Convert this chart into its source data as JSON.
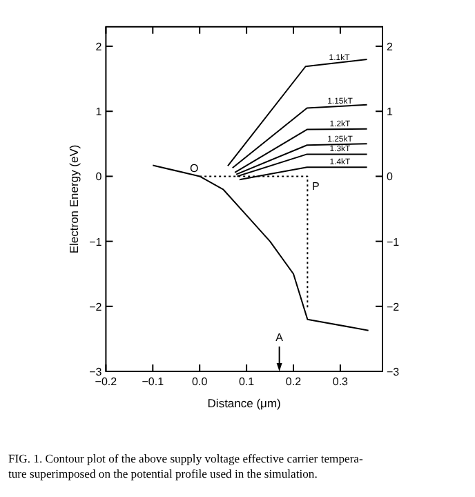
{
  "chart_data": {
    "type": "line",
    "xlabel": "Distance (μm)",
    "ylabel": "Electron Energy (eV)",
    "xlim": [
      -0.2,
      0.39
    ],
    "xticks": [
      {
        "value": -0.2,
        "label": "−0.2"
      },
      {
        "value": -0.1,
        "label": "−0.1"
      },
      {
        "value": 0,
        "label": "0.0"
      },
      {
        "value": 0.1,
        "label": "0.1"
      },
      {
        "value": 0.2,
        "label": "0.2"
      },
      {
        "value": 0.3,
        "label": "0.3"
      }
    ],
    "ylim": [
      -3,
      2.3
    ],
    "yticks": [
      {
        "value": -3,
        "label": "−3"
      },
      {
        "value": -2,
        "label": "−2"
      },
      {
        "value": -1,
        "label": "−1"
      },
      0,
      1,
      2
    ],
    "y2lim": [
      -3,
      2.3
    ],
    "y2ticks": [
      {
        "value": -3,
        "label": "−3"
      },
      {
        "value": -2,
        "label": "−2"
      },
      {
        "value": -1,
        "label": "−1"
      },
      0,
      1,
      2
    ],
    "grid": false,
    "marker": "none",
    "ref_lines": [
      {
        "axis": "x",
        "value": 0.17,
        "label": "A"
      }
    ],
    "series": [
      {
        "color": "#000000",
        "line_style": "solid",
        "x": [
          -0.1,
          0,
          0.05,
          0.1,
          0.15,
          0.2,
          0.23,
          0.36
        ],
        "values": [
          0.17,
          0,
          -0.2,
          -0.6,
          -1.0,
          -1.5,
          -2.2,
          -2.37
        ]
      },
      {
        "color": "#000000",
        "line_style": "dotted",
        "x": [
          0,
          0.23,
          0.23
        ],
        "values": [
          0,
          0,
          -2.05
        ]
      },
      {
        "name": "1.1kT",
        "color": "#000000",
        "line_style": "solid",
        "x": [
          0.06,
          0.226,
          0.357
        ],
        "values": [
          0.16,
          1.69,
          1.8
        ]
      },
      {
        "name": "1.15kT",
        "color": "#000000",
        "line_style": "solid",
        "x": [
          0.07,
          0.229,
          0.357
        ],
        "values": [
          0.13,
          1.05,
          1.1
        ]
      },
      {
        "name": "1.2kT",
        "color": "#000000",
        "line_style": "solid",
        "x": [
          0.075,
          0.229,
          0.357
        ],
        "values": [
          0.06,
          0.72,
          0.73
        ]
      },
      {
        "name": "1.25kT",
        "color": "#000000",
        "line_style": "solid",
        "x": [
          0.078,
          0.229,
          0.357
        ],
        "values": [
          0.03,
          0.48,
          0.5
        ]
      },
      {
        "name": "1.3kT",
        "color": "#000000",
        "line_style": "solid",
        "x": [
          0.08,
          0.229,
          0.357
        ],
        "values": [
          0,
          0.34,
          0.34
        ]
      },
      {
        "name": "1.4kT",
        "color": "#000000",
        "line_style": "solid",
        "x": [
          0.085,
          0.229,
          0.357
        ],
        "values": [
          -0.05,
          0.14,
          0.14
        ]
      }
    ],
    "annotations": [
      {
        "text": "O",
        "x": 0,
        "y": 0
      },
      {
        "text": "P",
        "x": 0.23,
        "y": 0
      },
      "FIG. 1. Contour plot of the above supply voltage effective carrier tempera-",
      "ture superimposed on the potential profile used in the simulation."
    ]
  }
}
